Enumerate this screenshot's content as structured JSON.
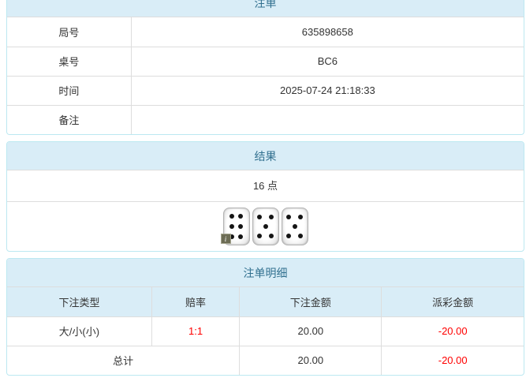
{
  "bet_order": {
    "title": "注单",
    "rows": [
      {
        "label": "局号",
        "value": "635898658"
      },
      {
        "label": "桌号",
        "value": "BC6"
      },
      {
        "label": "时间",
        "value": "2025-07-24 21:18:33"
      },
      {
        "label": "备注",
        "value": ""
      }
    ]
  },
  "result": {
    "title": "结果",
    "points_text": "16 点",
    "dice": [
      6,
      5,
      5
    ],
    "info_badge": "i"
  },
  "bet_details": {
    "title": "注单明细",
    "columns": [
      "下注类型",
      "赔率",
      "下注金额",
      "派彩金额"
    ],
    "rows": [
      {
        "bet_type": "大/小(小)",
        "odds": "1:1",
        "bet_amount": "20.00",
        "payout": "-20.00"
      }
    ],
    "total_row": {
      "label": "总计",
      "bet_amount": "20.00",
      "payout": "-20.00"
    }
  },
  "colors": {
    "panel_header_bg": "#d9edf7",
    "panel_header_text": "#31708f",
    "panel_border": "#bce8f1",
    "cell_border": "#dddddd",
    "text": "#333333",
    "negative_amount": "#ff0000"
  }
}
